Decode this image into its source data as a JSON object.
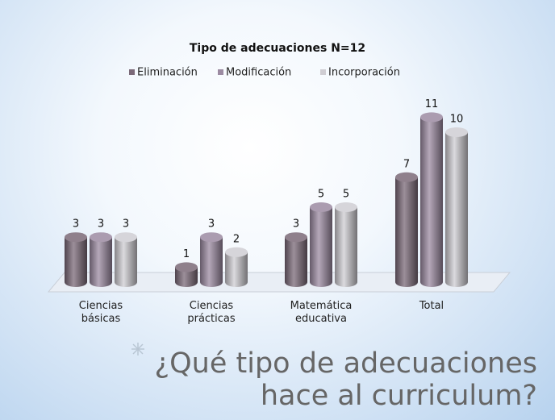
{
  "chart_data": {
    "type": "bar",
    "title": "Tipo de adecuaciones  N=12",
    "categories": [
      "Ciencias básicas",
      "Ciencias prácticas",
      "Matemática educativa",
      "Total"
    ],
    "series": [
      {
        "name": "Eliminación",
        "color": "#7b6978",
        "values": [
          3,
          1,
          3,
          7
        ]
      },
      {
        "name": "Modificación",
        "color": "#9c8ba2",
        "values": [
          3,
          3,
          5,
          11
        ]
      },
      {
        "name": "Incorporación",
        "color": "#cfcdd3",
        "values": [
          3,
          2,
          5,
          10
        ]
      }
    ],
    "legend": "top"
  },
  "heading": {
    "lines": [
      "¿Qué tipo de adecuaciones",
      "hace al curriculum?"
    ]
  }
}
